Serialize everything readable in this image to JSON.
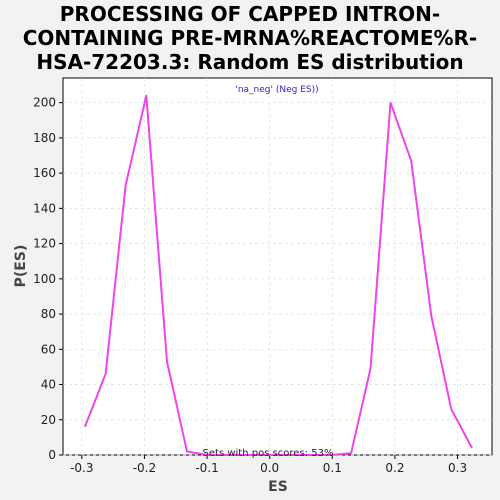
{
  "chart_data": {
    "type": "line",
    "title_lines": [
      "PROCESSING OF CAPPED INTRON-",
      "CONTAINING PRE-MRNA%REACTOME%R-",
      "HSA-72203.3: Random ES distribution"
    ],
    "xlabel": "ES",
    "ylabel": "P(ES)",
    "xlim": [
      -0.33,
      0.355
    ],
    "ylim": [
      0,
      214
    ],
    "xticks": [
      -0.3,
      -0.2,
      -0.1,
      0.0,
      0.1,
      0.2,
      0.3
    ],
    "xtick_labels": [
      "-0.3",
      "-0.2",
      "-0.1",
      "0.0",
      "0.1",
      "0.2",
      "0.3"
    ],
    "yticks": [
      0,
      20,
      40,
      60,
      80,
      100,
      120,
      140,
      160,
      180,
      200
    ],
    "grid": true,
    "legend": "'na_neg' (Neg ES))",
    "annotation": "Sets with pos scores: 53%",
    "series": [
      {
        "color": "#ee44ee",
        "x": [
          -0.295,
          -0.262,
          -0.23,
          -0.197,
          -0.164,
          -0.132,
          -0.099,
          -0.066,
          -0.034,
          0.0,
          0.032,
          0.065,
          0.097,
          0.13,
          0.161,
          0.193,
          0.226,
          0.258,
          0.29,
          0.323
        ],
        "y": [
          16,
          46,
          153,
          204,
          53,
          2,
          0,
          0,
          0,
          0,
          0,
          0,
          0,
          1,
          49,
          200,
          167,
          79,
          26,
          4
        ]
      }
    ]
  }
}
